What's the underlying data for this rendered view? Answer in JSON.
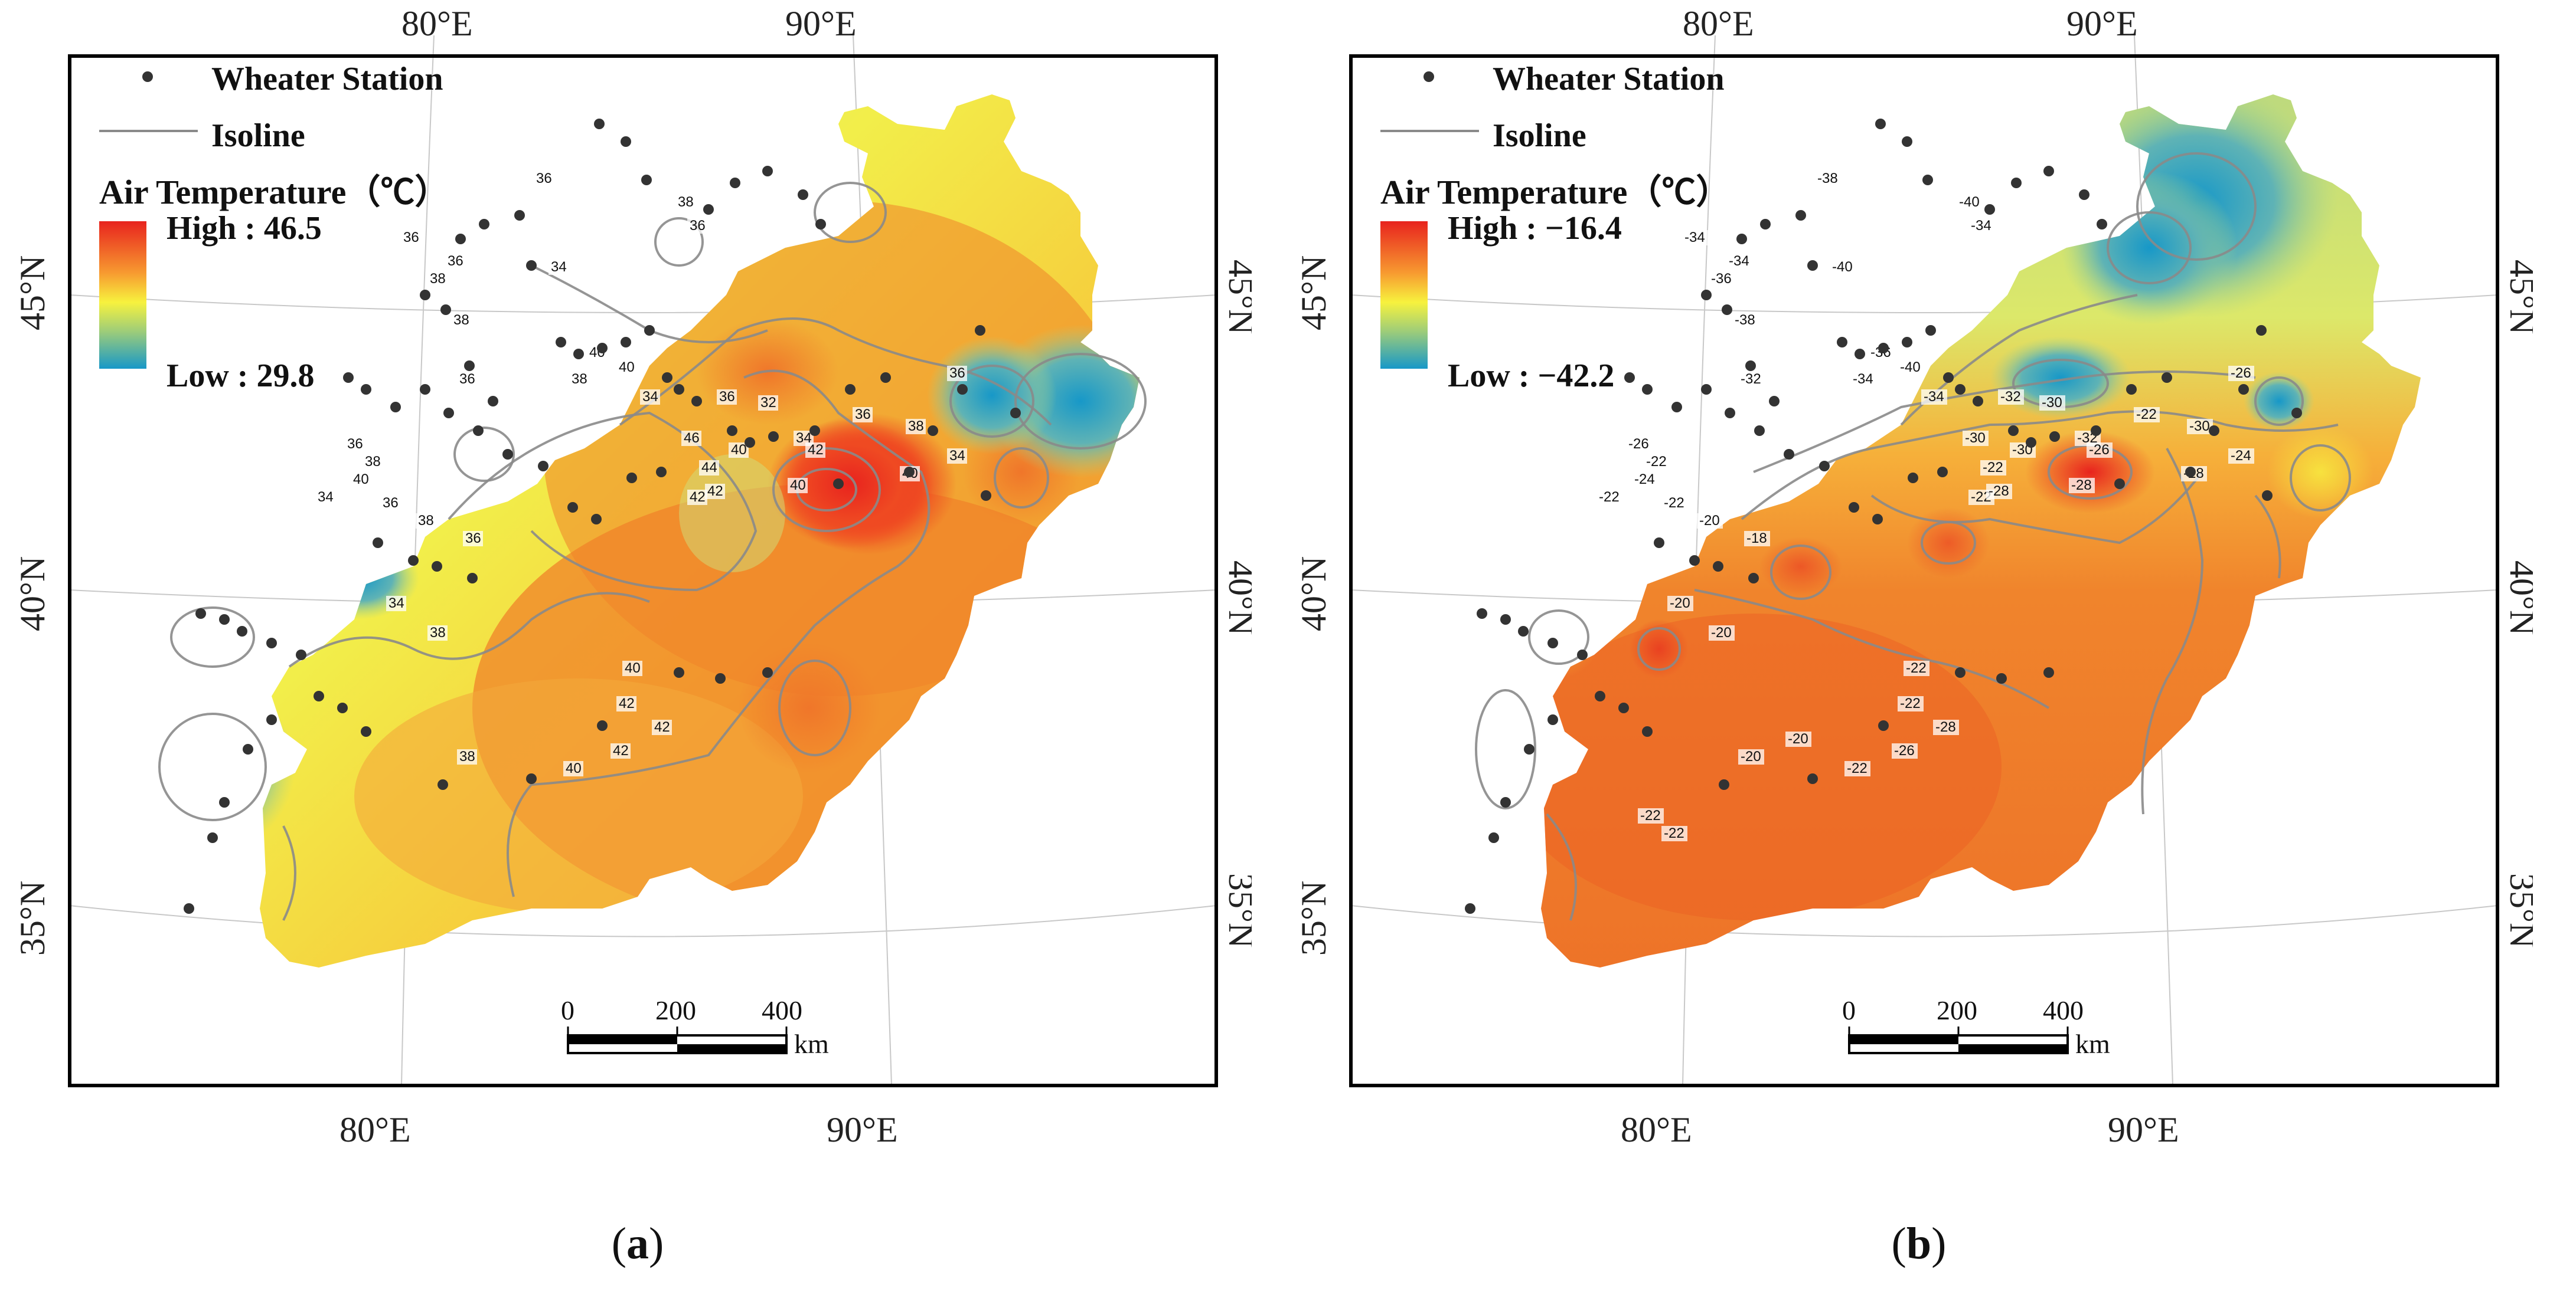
{
  "colors": {
    "high": "#e8231e",
    "mid": "#f7f23e",
    "low": "#1798c8",
    "isoline": "#8a8a8a",
    "station": "#333333"
  },
  "panels": [
    {
      "id": "a",
      "caption_letter": "a",
      "legend": {
        "station_label": "Wheater Station",
        "isoline_label": "Isoline",
        "title": "Air Temperature（℃）",
        "high": "High : 46.5",
        "low": "Low : 29.8"
      },
      "coords": {
        "top_80": "80°E",
        "top_90": "90°E",
        "bottom_80": "80°E",
        "bottom_90": "90°E",
        "left_45": "45°N",
        "left_40": "40°N",
        "left_35": "35°N",
        "right_45": "45°N",
        "right_40": "40°N",
        "right_35": "35°N"
      },
      "scale": {
        "t0": "0",
        "t200": "200",
        "t400": "400",
        "unit": "km"
      },
      "isoline_values": [
        "36",
        "38",
        "36",
        "36",
        "38",
        "36",
        "34",
        "38",
        "40",
        "40",
        "38",
        "36",
        "34",
        "36",
        "32",
        "34",
        "36",
        "38",
        "40",
        "42",
        "46",
        "44",
        "42",
        "40",
        "42",
        "40",
        "36",
        "34",
        "36",
        "38",
        "40",
        "34",
        "36",
        "38",
        "36",
        "34",
        "38",
        "40",
        "42",
        "42",
        "42",
        "40",
        "38"
      ]
    },
    {
      "id": "b",
      "caption_letter": "b",
      "legend": {
        "station_label": "Wheater Station",
        "isoline_label": "Isoline",
        "title": "Air Temperature（℃）",
        "high": "High : −16.4",
        "low": "Low : −42.2"
      },
      "coords": {
        "top_80": "80°E",
        "top_90": "90°E",
        "bottom_80": "80°E",
        "bottom_90": "90°E",
        "left_45": "45°N",
        "left_40": "40°N",
        "left_35": "35°N",
        "right_45": "45°N",
        "right_40": "40°N",
        "right_35": "35°N"
      },
      "scale": {
        "t0": "0",
        "t200": "200",
        "t400": "400",
        "unit": "km"
      },
      "isoline_values": [
        "-38",
        "-40",
        "-34",
        "-34",
        "-36",
        "-34",
        "-40",
        "-38",
        "-36",
        "-40",
        "-34",
        "-32",
        "-34",
        "-32",
        "-30",
        "-32",
        "-26",
        "-30",
        "-28",
        "-26",
        "-30",
        "-22",
        "-22",
        "-30",
        "-28",
        "-28",
        "-22",
        "-24",
        "-26",
        "-22",
        "-24",
        "-22",
        "-22",
        "-20",
        "-18",
        "-20",
        "-20",
        "-22",
        "-22",
        "-28",
        "-26",
        "-22",
        "-20",
        "-20",
        "-22",
        "-22"
      ]
    }
  ]
}
